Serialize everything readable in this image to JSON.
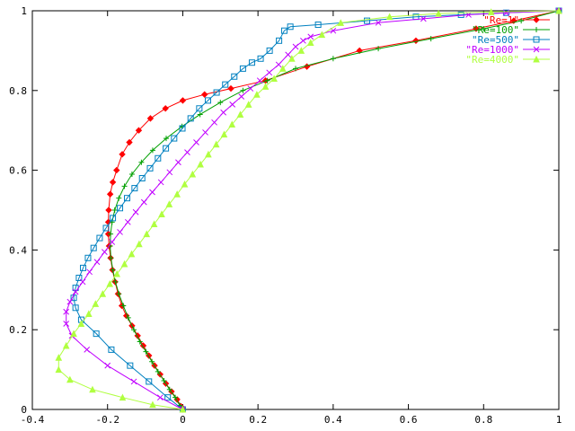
{
  "chart_data": {
    "type": "line",
    "title": "",
    "xlabel": "",
    "ylabel": "",
    "xlim": [
      -0.4,
      1
    ],
    "ylim": [
      0,
      1
    ],
    "xticks": [
      "-0.4",
      "-0.2",
      "0",
      "0.2",
      "0.4",
      "0.6",
      "0.8",
      "1"
    ],
    "yticks": [
      "0",
      "0.2",
      "0.4",
      "0.6",
      "0.8",
      "1"
    ],
    "grid": false,
    "legend_position": "top-right",
    "series": [
      {
        "name": "\"Re=1\"",
        "color": "#ff0000",
        "marker": "diamond",
        "x": [
          0,
          -0.005,
          -0.015,
          -0.03,
          -0.045,
          -0.06,
          -0.075,
          -0.09,
          -0.105,
          -0.12,
          -0.135,
          -0.15,
          -0.162,
          -0.172,
          -0.18,
          -0.187,
          -0.192,
          -0.196,
          -0.198,
          -0.198,
          -0.197,
          -0.193,
          -0.186,
          -0.176,
          -0.161,
          -0.142,
          -0.117,
          -0.086,
          -0.046,
          0.0,
          0.058,
          0.128,
          0.22,
          0.33,
          0.47,
          0.62,
          0.78,
          0.88,
          1.0
        ],
        "y": [
          0,
          0.008,
          0.025,
          0.045,
          0.065,
          0.088,
          0.11,
          0.135,
          0.16,
          0.185,
          0.21,
          0.235,
          0.26,
          0.29,
          0.32,
          0.35,
          0.38,
          0.41,
          0.44,
          0.47,
          0.5,
          0.54,
          0.57,
          0.6,
          0.64,
          0.67,
          0.7,
          0.73,
          0.755,
          0.775,
          0.79,
          0.805,
          0.825,
          0.86,
          0.9,
          0.925,
          0.955,
          0.975,
          1.0
        ]
      },
      {
        "name": "\"Re=100\"",
        "color": "#00a000",
        "marker": "plus",
        "x": [
          0,
          -0.008,
          -0.02,
          -0.035,
          -0.05,
          -0.066,
          -0.082,
          -0.098,
          -0.114,
          -0.13,
          -0.145,
          -0.158,
          -0.17,
          -0.179,
          -0.186,
          -0.191,
          -0.193,
          -0.192,
          -0.188,
          -0.181,
          -0.17,
          -0.155,
          -0.135,
          -0.11,
          -0.08,
          -0.044,
          -0.002,
          0.046,
          0.1,
          0.16,
          0.225,
          0.3,
          0.4,
          0.52,
          0.66,
          0.8,
          0.9,
          1.0
        ],
        "y": [
          0,
          0.01,
          0.03,
          0.05,
          0.072,
          0.095,
          0.12,
          0.145,
          0.17,
          0.2,
          0.23,
          0.26,
          0.29,
          0.32,
          0.35,
          0.38,
          0.41,
          0.44,
          0.47,
          0.5,
          0.53,
          0.56,
          0.59,
          0.62,
          0.65,
          0.68,
          0.71,
          0.74,
          0.77,
          0.8,
          0.825,
          0.855,
          0.88,
          0.905,
          0.93,
          0.955,
          0.975,
          1.0
        ]
      },
      {
        "name": "\"Re=500\"",
        "color": "#0080c0",
        "marker": "square",
        "x": [
          0,
          -0.04,
          -0.09,
          -0.14,
          -0.19,
          -0.23,
          -0.27,
          -0.285,
          -0.29,
          -0.285,
          -0.276,
          -0.265,
          -0.252,
          -0.237,
          -0.221,
          -0.204,
          -0.186,
          -0.167,
          -0.148,
          -0.128,
          -0.108,
          -0.087,
          -0.066,
          -0.045,
          -0.023,
          -0.001,
          0.021,
          0.044,
          0.067,
          0.09,
          0.113,
          0.137,
          0.16,
          0.184,
          0.207,
          0.231,
          0.256,
          0.27,
          0.286,
          0.36,
          0.49,
          0.62,
          0.74,
          0.86,
          1.0
        ],
        "y": [
          0,
          0.03,
          0.07,
          0.11,
          0.15,
          0.19,
          0.225,
          0.255,
          0.28,
          0.305,
          0.33,
          0.355,
          0.38,
          0.405,
          0.43,
          0.455,
          0.48,
          0.505,
          0.53,
          0.555,
          0.58,
          0.605,
          0.63,
          0.655,
          0.68,
          0.705,
          0.73,
          0.755,
          0.775,
          0.795,
          0.815,
          0.835,
          0.855,
          0.87,
          0.88,
          0.9,
          0.925,
          0.95,
          0.96,
          0.965,
          0.975,
          0.985,
          0.99,
          0.995,
          1.0
        ]
      },
      {
        "name": "\"Re=1000\"",
        "color": "#c000ff",
        "marker": "cross",
        "x": [
          0,
          -0.06,
          -0.13,
          -0.2,
          -0.255,
          -0.295,
          -0.31,
          -0.31,
          -0.3,
          -0.285,
          -0.266,
          -0.248,
          -0.228,
          -0.208,
          -0.188,
          -0.167,
          -0.146,
          -0.125,
          -0.103,
          -0.081,
          -0.058,
          -0.035,
          -0.012,
          0.012,
          0.036,
          0.06,
          0.084,
          0.108,
          0.132,
          0.156,
          0.18,
          0.205,
          0.23,
          0.255,
          0.28,
          0.3,
          0.32,
          0.34,
          0.4,
          0.52,
          0.64,
          0.76,
          0.86,
          1.0
        ],
        "y": [
          0,
          0.03,
          0.07,
          0.11,
          0.15,
          0.185,
          0.215,
          0.245,
          0.27,
          0.295,
          0.32,
          0.345,
          0.37,
          0.395,
          0.42,
          0.445,
          0.47,
          0.495,
          0.52,
          0.545,
          0.57,
          0.595,
          0.62,
          0.645,
          0.67,
          0.695,
          0.72,
          0.745,
          0.765,
          0.785,
          0.805,
          0.825,
          0.845,
          0.865,
          0.89,
          0.91,
          0.925,
          0.935,
          0.95,
          0.97,
          0.98,
          0.99,
          0.995,
          1.0
        ]
      },
      {
        "name": "\"Re=4000\"",
        "color": "#b0ff40",
        "marker": "triangle",
        "x": [
          0,
          -0.08,
          -0.16,
          -0.24,
          -0.3,
          -0.33,
          -0.33,
          -0.31,
          -0.29,
          -0.27,
          -0.25,
          -0.232,
          -0.213,
          -0.194,
          -0.175,
          -0.155,
          -0.136,
          -0.116,
          -0.096,
          -0.076,
          -0.056,
          -0.036,
          -0.015,
          0.005,
          0.026,
          0.047,
          0.068,
          0.089,
          0.11,
          0.131,
          0.153,
          0.175,
          0.197,
          0.22,
          0.243,
          0.266,
          0.29,
          0.315,
          0.34,
          0.37,
          0.42,
          0.55,
          0.68,
          0.82,
          1.0
        ],
        "y": [
          0,
          0.012,
          0.03,
          0.05,
          0.075,
          0.1,
          0.13,
          0.16,
          0.19,
          0.215,
          0.24,
          0.265,
          0.29,
          0.315,
          0.34,
          0.365,
          0.39,
          0.415,
          0.44,
          0.465,
          0.49,
          0.515,
          0.54,
          0.565,
          0.59,
          0.615,
          0.64,
          0.665,
          0.69,
          0.715,
          0.74,
          0.765,
          0.79,
          0.81,
          0.83,
          0.855,
          0.88,
          0.9,
          0.92,
          0.94,
          0.97,
          0.985,
          0.993,
          0.997,
          1.0
        ]
      }
    ]
  }
}
